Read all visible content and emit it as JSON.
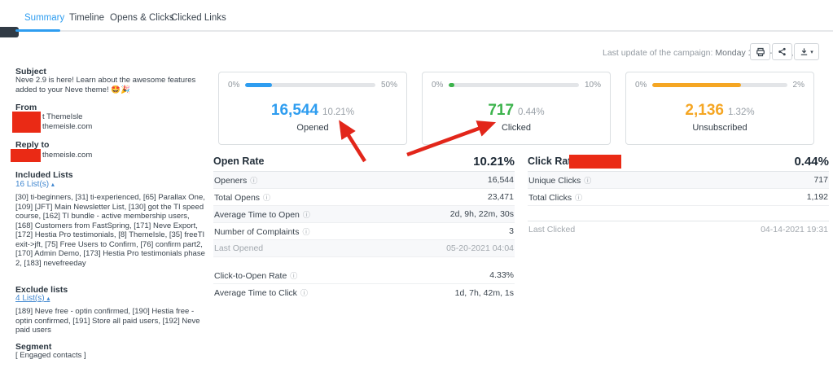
{
  "tabs": {
    "summary": "Summary",
    "timeline": "Timeline",
    "opens_clicks": "Opens & Clicks",
    "clicked_links": "Clicked Links"
  },
  "meta": {
    "last_update_label": "Last update of the campaign:",
    "last_update_value": "Monday 11-30-2020, 23:00"
  },
  "icons": {
    "info": "ⓘ",
    "caret_up": "▴",
    "caret_down": "▾"
  },
  "sidebar": {
    "subject_label": "Subject",
    "subject_text": "Neve 2.9 is here! Learn about the awesome features added to your Neve theme! 🤩🎉",
    "from_label": "From",
    "from_name": "t ThemeIsle",
    "from_email": "themeisle.com",
    "reply_to_label": "Reply to",
    "reply_to_email": "themeisle.com",
    "included_lists_label": "Included Lists",
    "included_lists_link": "16 List(s)",
    "included_lists_text": "[30] ti-beginners, [31] ti-experienced, [65] Parallax One, [109] [JFT] Main Newsletter List, [130] got the TI speed course, [162] TI bundle - active membership users, [168] Customers from FastSpring, [171] Neve Export, [172] Hestia Pro testimonials, [8] ThemeIsle, [35] freeTI exit->jft, [75] Free Users to Confirm, [76] confirm part2, [170] Admin Demo, [173] Hestia Pro testimonials phase 2, [183] nevefreeday",
    "exclude_lists_label": "Exclude lists",
    "exclude_lists_link": "4 List(s)",
    "exclude_lists_text": "[189] Neve free - optin confirmed, [190] Hestia free - optin confirmed, [191] Store all paid users, [192] Neve paid users",
    "segment_label": "Segment",
    "segment_value": "[ Engaged contacts ]"
  },
  "gauges": [
    {
      "label": "Opened",
      "value": "16,544",
      "rate": "10.21%",
      "scale_min": "0%",
      "scale_max": "50%",
      "fill_pct": 20.4,
      "color": "#2e9df0"
    },
    {
      "label": "Clicked",
      "value": "717",
      "rate": "0.44%",
      "scale_min": "0%",
      "scale_max": "10%",
      "fill_pct": 4.4,
      "color": "#3cb34c"
    },
    {
      "label": "Unsubscribed",
      "value": "2,136",
      "rate": "1.32%",
      "scale_min": "0%",
      "scale_max": "2%",
      "fill_pct": 66,
      "color": "#f5a623"
    }
  ],
  "open_stats": {
    "title": "Open Rate",
    "title_value": "10.21%",
    "rows": [
      {
        "label": "Openers",
        "value": "16,544"
      },
      {
        "label": "Total Opens",
        "value": "23,471"
      },
      {
        "label": "Average Time to Open",
        "value": "2d, 9h, 22m, 30s"
      },
      {
        "label": "Number of Complaints",
        "value": "3"
      },
      {
        "label": "Last Opened",
        "value": "05-20-2021 04:04"
      }
    ],
    "secondary_rows": [
      {
        "label": "Click-to-Open Rate",
        "value": "4.33%"
      },
      {
        "label": "Average Time to Click",
        "value": "1d, 7h, 42m, 1s"
      }
    ]
  },
  "click_stats": {
    "title": "Click Rate",
    "title_value": "0.44%",
    "rows": [
      {
        "label": "Unique Clicks",
        "value": "717"
      },
      {
        "label": "Total Clicks",
        "value": "1,192"
      }
    ],
    "last_clicked": {
      "label": "Last Clicked",
      "value": "04-14-2021 19:31"
    }
  },
  "annotations": {
    "arrow_color": "#e2261a",
    "redaction_color": "#ea2a15"
  }
}
